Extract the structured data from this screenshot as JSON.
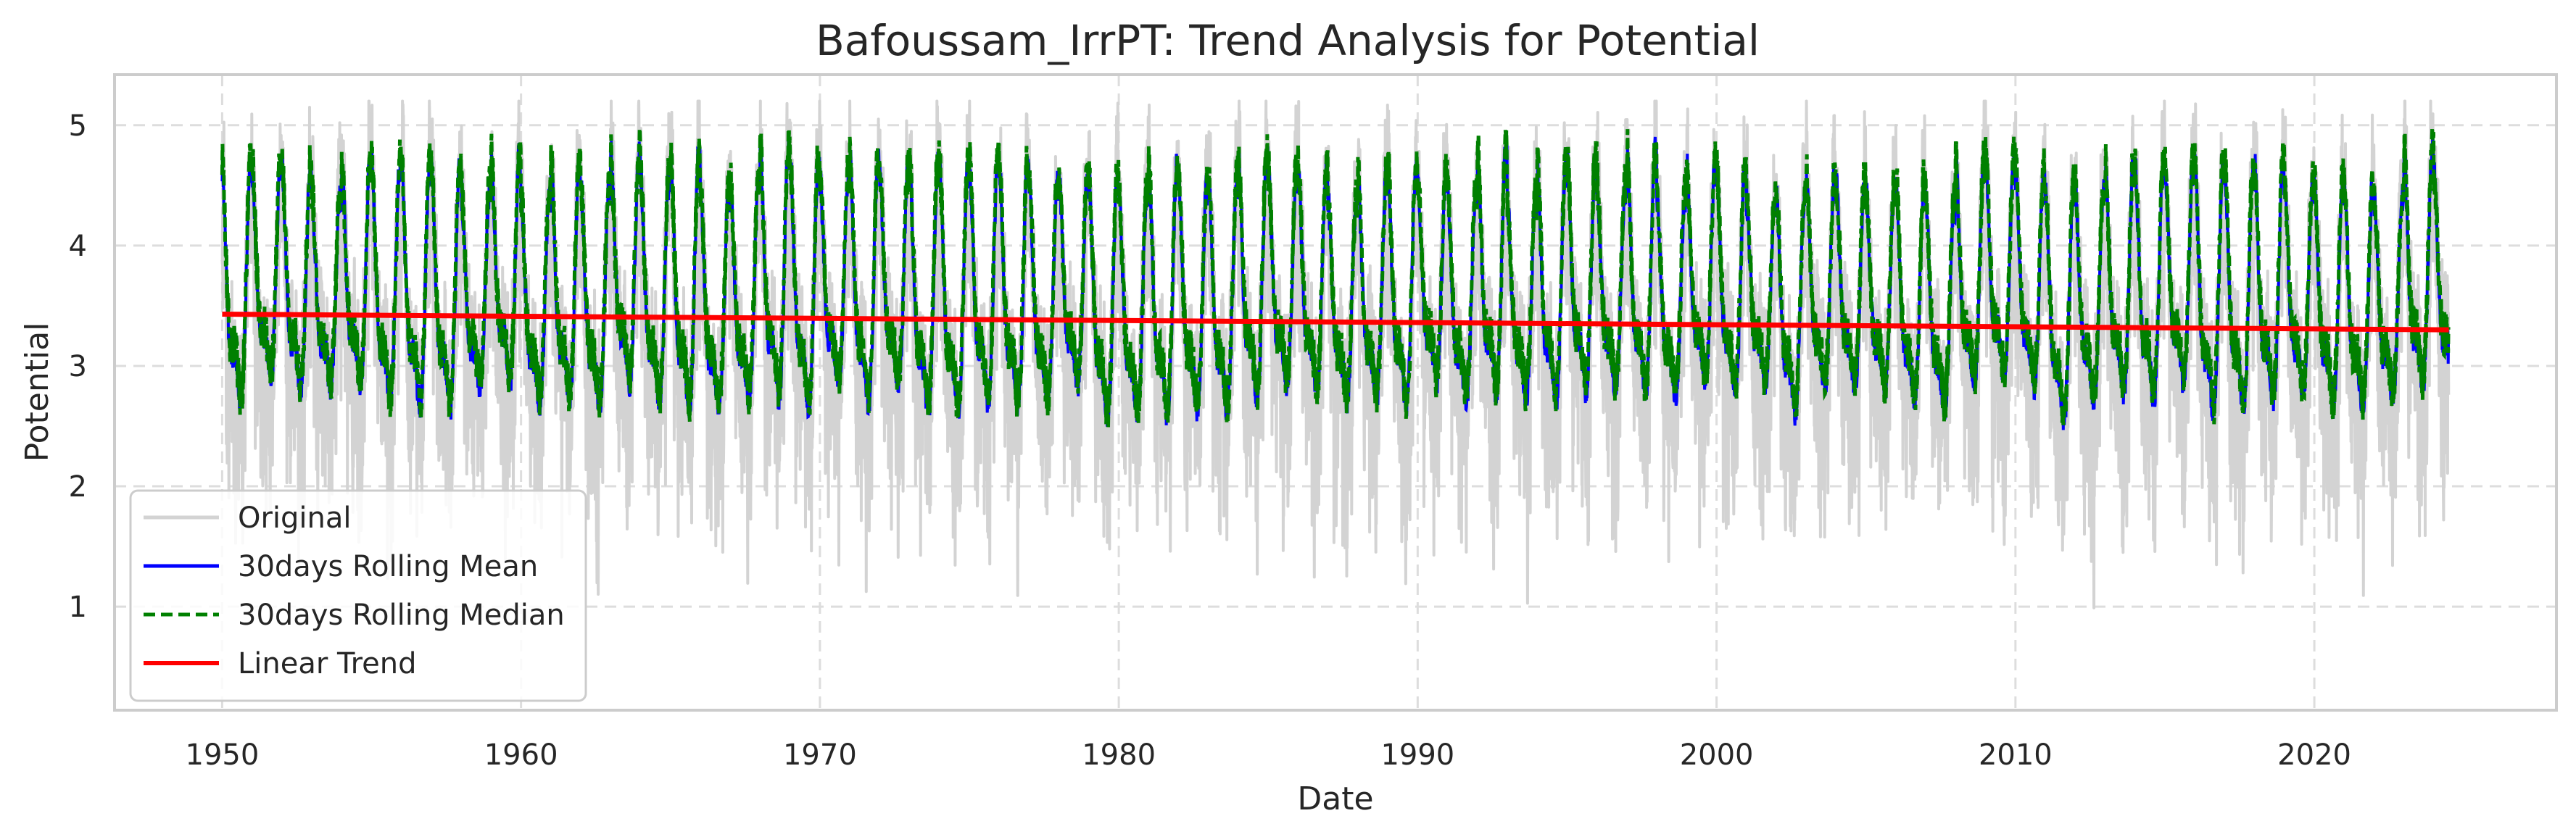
{
  "chart_data": {
    "type": "line",
    "title": "Bafoussam_IrrPT: Trend Analysis for Potential",
    "xlabel": "Date",
    "ylabel": "Potential",
    "xlim": [
      1946.4,
      2028.1
    ],
    "ylim": [
      0.14,
      5.42
    ],
    "x_ticks": [
      1950,
      1960,
      1970,
      1980,
      1990,
      2000,
      2010,
      2020
    ],
    "y_ticks": [
      1,
      2,
      3,
      4,
      5
    ],
    "grid": true,
    "legend_position": "lower-left",
    "x_range": [
      1950.0,
      2024.5
    ],
    "seasonal_pattern": {
      "period_years": 1.0,
      "original_daily": {
        "typical_high": 4.7,
        "typical_low": 1.0,
        "max": 5.2,
        "min": 0.4
      },
      "rolling_mean": {
        "typical_high": 4.55,
        "typical_low": 2.5
      },
      "rolling_median": {
        "typical_high": 4.6,
        "typical_low": 2.5
      }
    },
    "series": [
      {
        "name": "Original",
        "color": "#d3d3d3",
        "style": "solid"
      },
      {
        "name": "30days Rolling Mean",
        "color": "#0000ff",
        "style": "solid"
      },
      {
        "name": "30days Rolling Median",
        "color": "#008000",
        "style": "dashed"
      },
      {
        "name": "Linear Trend",
        "color": "#ff0000",
        "style": "solid",
        "x": [
          1950.0,
          2024.5
        ],
        "y": [
          3.43,
          3.3
        ]
      }
    ]
  }
}
